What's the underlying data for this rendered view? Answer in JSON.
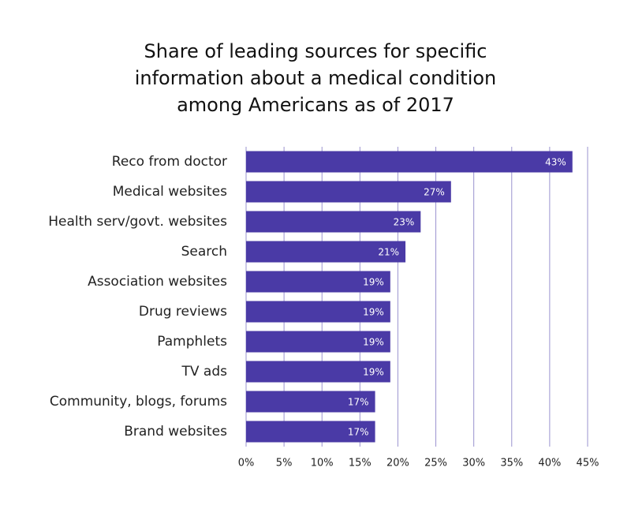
{
  "chart_data": {
    "type": "hbar",
    "title": "Share of leading sources for specific information about a medical condition among Americans as of 2017",
    "categories": [
      "Reco from doctor",
      "Medical websites",
      "Health serv/govt. websites",
      "Search",
      "Association websites",
      "Drug reviews",
      "Pamphlets",
      "TV ads",
      "Community, blogs, forums",
      "Brand websites"
    ],
    "values": [
      43,
      27,
      23,
      21,
      19,
      19,
      19,
      19,
      17,
      17
    ],
    "value_labels": [
      "43%",
      "27%",
      "23%",
      "21%",
      "19%",
      "19%",
      "19%",
      "19%",
      "17%",
      "17%"
    ],
    "color": "#4a3aa6",
    "xlim": [
      0,
      45
    ],
    "xticks": [
      {
        "value": 0,
        "label": "0%"
      },
      {
        "value": 5,
        "label": "5%"
      },
      {
        "value": 10,
        "label": "10%"
      },
      {
        "value": 15,
        "label": "15%"
      },
      {
        "value": 20,
        "label": "20%"
      },
      {
        "value": 25,
        "label": "25%"
      },
      {
        "value": 30,
        "label": "30%"
      },
      {
        "value": 35,
        "label": "35%"
      },
      {
        "value": 40,
        "label": "40%"
      },
      {
        "value": 45,
        "label": "45%"
      }
    ],
    "grid": true
  }
}
